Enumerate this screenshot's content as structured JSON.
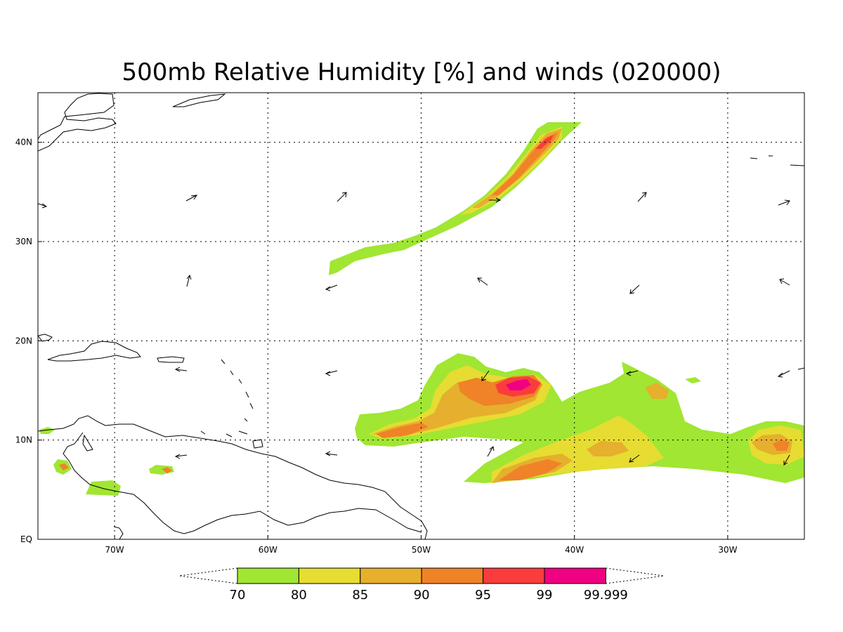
{
  "title": "500mb Relative Humidity [%] and winds (020000)",
  "map": {
    "lon_range": [
      -75,
      -25
    ],
    "lat_range": [
      0,
      45
    ],
    "lon_ticks": [
      {
        "value": -70,
        "label": "70W"
      },
      {
        "value": -60,
        "label": "60W"
      },
      {
        "value": -50,
        "label": "50W"
      },
      {
        "value": -40,
        "label": "40W"
      },
      {
        "value": -30,
        "label": "30W"
      }
    ],
    "lat_ticks": [
      {
        "value": 0,
        "label": "EQ"
      },
      {
        "value": 10,
        "label": "10N"
      },
      {
        "value": 20,
        "label": "20N"
      },
      {
        "value": 30,
        "label": "30N"
      },
      {
        "value": 40,
        "label": "40N"
      }
    ],
    "grid": true
  },
  "colorbar": {
    "levels": [
      "70",
      "80",
      "85",
      "90",
      "95",
      "99",
      "99.999"
    ],
    "colors": [
      "#a0e632",
      "#e6dc32",
      "#e6af2d",
      "#f08228",
      "#fa3c3c",
      "#f00082"
    ]
  }
}
